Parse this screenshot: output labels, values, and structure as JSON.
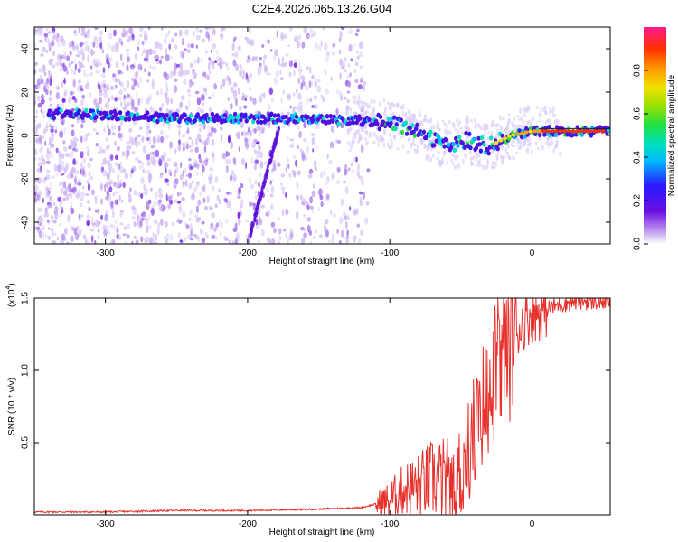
{
  "title": "C2E4.2026.065.13.26.G04",
  "colors": {
    "background": "#ffffff",
    "snr_line": "#e8302c",
    "spectrogram_low": "#6a0fe0",
    "spectrogram_scatter": "#8e4fe6"
  },
  "chart_data": [
    {
      "type": "heatmap",
      "xlabel": "Height of straight line (km)",
      "ylabel": "Frequency (Hz)",
      "xlim": [
        -350,
        55
      ],
      "ylim": [
        -50,
        50
      ],
      "xticks": [
        -300,
        -200,
        -100,
        0
      ],
      "xtick_labels": [
        "-300",
        "-200",
        "-100",
        "0"
      ],
      "yticks": [
        40,
        20,
        0,
        -20,
        -40
      ],
      "ytick_labels": [
        "40",
        "20",
        "0",
        "-20",
        "-40"
      ],
      "ridge": {
        "description_x": [
          -325,
          -250,
          -175,
          -120,
          -95,
          -75,
          -60,
          -45,
          -30,
          -15,
          0,
          55
        ],
        "frequency_hz": [
          10,
          8,
          8,
          7,
          5,
          0,
          -5,
          -2,
          -5,
          0,
          2,
          2
        ]
      },
      "colorbar": {
        "label": "Normalized spectral amplitude",
        "range": [
          0,
          1
        ],
        "ticks": [
          0.0,
          0.2,
          0.4,
          0.6,
          0.8
        ],
        "tick_labels": [
          "0.0",
          "0.2",
          "0.4",
          "0.6",
          "0.8"
        ]
      }
    },
    {
      "type": "line",
      "xlabel": "Height of straight line (km)",
      "ylabel": "SNR (10 * v/v)",
      "scale_label": "(x10",
      "scale_exponent": "4",
      "scale_suffix": ")",
      "xlim": [
        -350,
        55
      ],
      "ylim": [
        0,
        1.5
      ],
      "xticks": [
        -300,
        -200,
        -100,
        0
      ],
      "xtick_labels": [
        "-300",
        "-200",
        "-100",
        "0"
      ],
      "yticks": [
        0.5,
        1.0,
        1.5
      ],
      "ytick_labels": [
        "0.5",
        "1.0",
        "1.5"
      ],
      "series": [
        {
          "name": "SNR",
          "x": [
            -350,
            -300,
            -250,
            -200,
            -150,
            -120,
            -100,
            -90,
            -80,
            -70,
            -60,
            -55,
            -50,
            -45,
            -40,
            -35,
            -30,
            -25,
            -20,
            -15,
            -10,
            -5,
            0,
            10,
            20,
            30,
            40,
            55
          ],
          "y": [
            0.02,
            0.02,
            0.03,
            0.03,
            0.04,
            0.05,
            0.1,
            0.18,
            0.2,
            0.25,
            0.22,
            0.15,
            0.3,
            0.45,
            0.6,
            0.75,
            0.9,
            1.05,
            1.1,
            1.2,
            1.28,
            1.35,
            1.38,
            1.42,
            1.46,
            1.48,
            1.48,
            1.48
          ]
        }
      ]
    }
  ]
}
